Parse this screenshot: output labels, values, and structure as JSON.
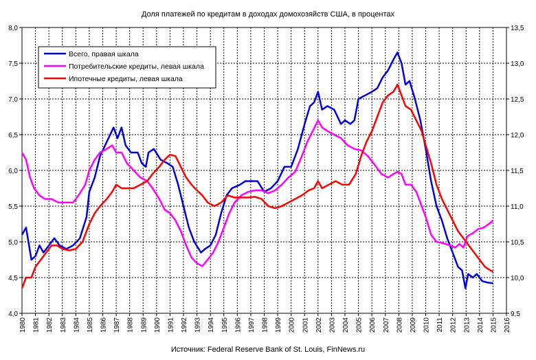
{
  "chart_data": {
    "type": "line",
    "title": "Доля платежей по кредитам в доходах домохозяйств США, в процентах",
    "source": "Источник: Federal Reserve Bank of St. Louis, FinNews.ru",
    "xlabel": "",
    "ylabel_left": "",
    "ylabel_right": "",
    "xlim": [
      1980,
      2016
    ],
    "ylim_left": [
      4.0,
      8.0
    ],
    "ylim_right": [
      9.5,
      13.5
    ],
    "x_ticks": [
      "1980",
      "1981",
      "1982",
      "1983",
      "1984",
      "1985",
      "1986",
      "1987",
      "1988",
      "1989",
      "1990",
      "1991",
      "1992",
      "1993",
      "1994",
      "1995",
      "1996",
      "1997",
      "1998",
      "1999",
      "2000",
      "2001",
      "2002",
      "2003",
      "2004",
      "2005",
      "2006",
      "2007",
      "2008",
      "2009",
      "2010",
      "2011",
      "2012",
      "2013",
      "2014",
      "2015",
      "2016"
    ],
    "y_ticks_left": [
      "4,0",
      "4,5",
      "5,0",
      "5,5",
      "6,0",
      "6,5",
      "7,0",
      "7,5",
      "8,0"
    ],
    "y_ticks_right": [
      "9,5",
      "10,0",
      "10,5",
      "11,0",
      "11,5",
      "12,0",
      "12,5",
      "13,0",
      "13,5"
    ],
    "grid": true,
    "legend_position": "top-left",
    "series": [
      {
        "name": "Всего, правая шкала",
        "axis": "right",
        "color": "#0000dd",
        "points": [
          [
            1980,
            10.6
          ],
          [
            1980.3,
            10.7
          ],
          [
            1980.7,
            10.25
          ],
          [
            1981,
            10.3
          ],
          [
            1981.3,
            10.45
          ],
          [
            1981.6,
            10.35
          ],
          [
            1982,
            10.45
          ],
          [
            1982.4,
            10.55
          ],
          [
            1982.8,
            10.45
          ],
          [
            1983.3,
            10.4
          ],
          [
            1983.8,
            10.45
          ],
          [
            1984.3,
            10.55
          ],
          [
            1984.8,
            10.85
          ],
          [
            1985,
            11.2
          ],
          [
            1985.4,
            11.4
          ],
          [
            1985.8,
            11.7
          ],
          [
            1986.3,
            11.9
          ],
          [
            1986.8,
            12.1
          ],
          [
            1987.1,
            11.95
          ],
          [
            1987.4,
            12.1
          ],
          [
            1987.7,
            11.85
          ],
          [
            1988.1,
            11.75
          ],
          [
            1988.6,
            11.75
          ],
          [
            1988.9,
            11.6
          ],
          [
            1989.2,
            11.55
          ],
          [
            1989.4,
            11.75
          ],
          [
            1989.8,
            11.8
          ],
          [
            1990.3,
            11.65
          ],
          [
            1990.8,
            11.6
          ],
          [
            1991.2,
            11.55
          ],
          [
            1991.6,
            11.3
          ],
          [
            1992,
            11.0
          ],
          [
            1992.4,
            10.7
          ],
          [
            1992.8,
            10.5
          ],
          [
            1993.3,
            10.35
          ],
          [
            1993.6,
            10.4
          ],
          [
            1994,
            10.45
          ],
          [
            1994.4,
            10.6
          ],
          [
            1994.8,
            10.9
          ],
          [
            1995.2,
            11.15
          ],
          [
            1995.6,
            11.25
          ],
          [
            1996.2,
            11.3
          ],
          [
            1996.6,
            11.35
          ],
          [
            1997,
            11.35
          ],
          [
            1997.5,
            11.35
          ],
          [
            1998,
            11.2
          ],
          [
            1998.5,
            11.25
          ],
          [
            1999,
            11.35
          ],
          [
            1999.5,
            11.55
          ],
          [
            2000,
            11.55
          ],
          [
            2000.5,
            11.8
          ],
          [
            2001,
            12.15
          ],
          [
            2001.4,
            12.4
          ],
          [
            2001.7,
            12.45
          ],
          [
            2002,
            12.6
          ],
          [
            2002.3,
            12.35
          ],
          [
            2002.7,
            12.4
          ],
          [
            2003.2,
            12.35
          ],
          [
            2003.7,
            12.15
          ],
          [
            2004,
            12.2
          ],
          [
            2004.4,
            12.15
          ],
          [
            2004.7,
            12.2
          ],
          [
            2005,
            12.5
          ],
          [
            2005.5,
            12.55
          ],
          [
            2006,
            12.6
          ],
          [
            2006.4,
            12.65
          ],
          [
            2006.8,
            12.8
          ],
          [
            2007.2,
            12.9
          ],
          [
            2007.6,
            13.05
          ],
          [
            2007.9,
            13.15
          ],
          [
            2008.2,
            13.0
          ],
          [
            2008.5,
            12.7
          ],
          [
            2008.8,
            12.75
          ],
          [
            2009.2,
            12.5
          ],
          [
            2009.6,
            12.2
          ],
          [
            2010,
            11.8
          ],
          [
            2010.4,
            11.35
          ],
          [
            2010.8,
            11.0
          ],
          [
            2011.2,
            10.8
          ],
          [
            2011.6,
            10.55
          ],
          [
            2012,
            10.35
          ],
          [
            2012.4,
            10.15
          ],
          [
            2012.7,
            10.1
          ],
          [
            2012.95,
            9.85
          ],
          [
            2013.15,
            10.05
          ],
          [
            2013.5,
            10.0
          ],
          [
            2013.8,
            10.05
          ],
          [
            2014.2,
            9.95
          ],
          [
            2014.6,
            9.93
          ],
          [
            2015,
            9.92
          ]
        ]
      },
      {
        "name": "Потребительские кредиты, левая шкала",
        "axis": "left",
        "color": "#ff00ff",
        "points": [
          [
            1980,
            6.25
          ],
          [
            1980.3,
            6.15
          ],
          [
            1980.6,
            5.9
          ],
          [
            1980.9,
            5.75
          ],
          [
            1981.3,
            5.65
          ],
          [
            1981.7,
            5.6
          ],
          [
            1982.2,
            5.6
          ],
          [
            1982.7,
            5.55
          ],
          [
            1983.3,
            5.55
          ],
          [
            1983.8,
            5.55
          ],
          [
            1984.2,
            5.65
          ],
          [
            1984.7,
            5.8
          ],
          [
            1985,
            6.0
          ],
          [
            1985.4,
            6.15
          ],
          [
            1985.8,
            6.25
          ],
          [
            1986.3,
            6.3
          ],
          [
            1986.7,
            6.35
          ],
          [
            1987,
            6.25
          ],
          [
            1987.4,
            6.25
          ],
          [
            1987.8,
            6.1
          ],
          [
            1988.3,
            6.0
          ],
          [
            1988.8,
            5.9
          ],
          [
            1989.3,
            5.85
          ],
          [
            1989.7,
            5.75
          ],
          [
            1990.2,
            5.6
          ],
          [
            1990.6,
            5.45
          ],
          [
            1991,
            5.4
          ],
          [
            1991.4,
            5.3
          ],
          [
            1991.8,
            5.15
          ],
          [
            1992.2,
            4.95
          ],
          [
            1992.6,
            4.78
          ],
          [
            1993,
            4.7
          ],
          [
            1993.4,
            4.66
          ],
          [
            1993.8,
            4.75
          ],
          [
            1994.2,
            4.85
          ],
          [
            1994.6,
            5.0
          ],
          [
            1995,
            5.2
          ],
          [
            1995.4,
            5.4
          ],
          [
            1995.8,
            5.55
          ],
          [
            1996.3,
            5.65
          ],
          [
            1996.8,
            5.7
          ],
          [
            1997.3,
            5.72
          ],
          [
            1997.8,
            5.72
          ],
          [
            1998.3,
            5.68
          ],
          [
            1998.8,
            5.72
          ],
          [
            1999.3,
            5.8
          ],
          [
            1999.8,
            5.9
          ],
          [
            2000.3,
            5.98
          ],
          [
            2000.8,
            6.2
          ],
          [
            2001.2,
            6.4
          ],
          [
            2001.6,
            6.55
          ],
          [
            2002,
            6.7
          ],
          [
            2002.3,
            6.6
          ],
          [
            2002.7,
            6.55
          ],
          [
            2003.2,
            6.5
          ],
          [
            2003.7,
            6.45
          ],
          [
            2004.2,
            6.35
          ],
          [
            2004.7,
            6.3
          ],
          [
            2005.2,
            6.28
          ],
          [
            2005.7,
            6.2
          ],
          [
            2006.2,
            6.08
          ],
          [
            2006.7,
            5.95
          ],
          [
            2007.2,
            5.9
          ],
          [
            2007.6,
            5.95
          ],
          [
            2007.9,
            5.98
          ],
          [
            2008.2,
            5.95
          ],
          [
            2008.5,
            5.8
          ],
          [
            2008.9,
            5.8
          ],
          [
            2009.3,
            5.7
          ],
          [
            2009.7,
            5.5
          ],
          [
            2010,
            5.35
          ],
          [
            2010.4,
            5.1
          ],
          [
            2010.8,
            5.0
          ],
          [
            2011.3,
            4.98
          ],
          [
            2011.8,
            4.95
          ],
          [
            2012.2,
            4.92
          ],
          [
            2012.5,
            4.97
          ],
          [
            2012.8,
            4.92
          ],
          [
            2013.1,
            5.08
          ],
          [
            2013.5,
            5.12
          ],
          [
            2013.9,
            5.18
          ],
          [
            2014.3,
            5.2
          ],
          [
            2014.7,
            5.25
          ],
          [
            2015,
            5.3
          ]
        ]
      },
      {
        "name": "Ипотечные кредиты, левая шкала",
        "axis": "left",
        "color": "#ff0000",
        "points": [
          [
            1980,
            4.35
          ],
          [
            1980.3,
            4.5
          ],
          [
            1980.7,
            4.5
          ],
          [
            1981,
            4.65
          ],
          [
            1981.4,
            4.75
          ],
          [
            1981.8,
            4.85
          ],
          [
            1982.2,
            4.95
          ],
          [
            1982.6,
            4.95
          ],
          [
            1983,
            4.9
          ],
          [
            1983.5,
            4.88
          ],
          [
            1984,
            4.9
          ],
          [
            1984.5,
            5.0
          ],
          [
            1985,
            5.25
          ],
          [
            1985.4,
            5.4
          ],
          [
            1985.8,
            5.5
          ],
          [
            1986.3,
            5.6
          ],
          [
            1986.7,
            5.7
          ],
          [
            1987,
            5.8
          ],
          [
            1987.4,
            5.75
          ],
          [
            1987.8,
            5.75
          ],
          [
            1988.3,
            5.75
          ],
          [
            1988.8,
            5.8
          ],
          [
            1989.3,
            5.85
          ],
          [
            1989.7,
            5.95
          ],
          [
            1990.2,
            6.05
          ],
          [
            1990.6,
            6.15
          ],
          [
            1991,
            6.22
          ],
          [
            1991.4,
            6.2
          ],
          [
            1991.8,
            6.05
          ],
          [
            1992.2,
            5.9
          ],
          [
            1992.6,
            5.8
          ],
          [
            1993,
            5.72
          ],
          [
            1993.4,
            5.65
          ],
          [
            1993.8,
            5.55
          ],
          [
            1994.3,
            5.5
          ],
          [
            1994.8,
            5.55
          ],
          [
            1995.3,
            5.65
          ],
          [
            1995.8,
            5.62
          ],
          [
            1996.3,
            5.62
          ],
          [
            1996.8,
            5.62
          ],
          [
            1997.3,
            5.63
          ],
          [
            1997.8,
            5.6
          ],
          [
            1998.3,
            5.5
          ],
          [
            1998.8,
            5.47
          ],
          [
            1999.3,
            5.5
          ],
          [
            1999.8,
            5.55
          ],
          [
            2000.3,
            5.6
          ],
          [
            2000.8,
            5.65
          ],
          [
            2001.3,
            5.72
          ],
          [
            2001.7,
            5.75
          ],
          [
            2002,
            5.85
          ],
          [
            2002.3,
            5.75
          ],
          [
            2002.8,
            5.8
          ],
          [
            2003.3,
            5.85
          ],
          [
            2003.8,
            5.8
          ],
          [
            2004.3,
            5.8
          ],
          [
            2004.8,
            5.95
          ],
          [
            2005.2,
            6.2
          ],
          [
            2005.6,
            6.4
          ],
          [
            2006,
            6.55
          ],
          [
            2006.4,
            6.75
          ],
          [
            2006.8,
            6.95
          ],
          [
            2007.2,
            7.05
          ],
          [
            2007.6,
            7.1
          ],
          [
            2007.9,
            7.2
          ],
          [
            2008.2,
            7.05
          ],
          [
            2008.5,
            6.9
          ],
          [
            2008.9,
            6.85
          ],
          [
            2009.3,
            6.7
          ],
          [
            2009.7,
            6.55
          ],
          [
            2010,
            6.35
          ],
          [
            2010.4,
            6.1
          ],
          [
            2010.8,
            5.8
          ],
          [
            2011.2,
            5.6
          ],
          [
            2011.6,
            5.45
          ],
          [
            2012,
            5.3
          ],
          [
            2012.4,
            5.15
          ],
          [
            2012.8,
            5.05
          ],
          [
            2013.2,
            4.95
          ],
          [
            2013.6,
            4.85
          ],
          [
            2014,
            4.75
          ],
          [
            2014.4,
            4.65
          ],
          [
            2014.8,
            4.6
          ],
          [
            2015,
            4.58
          ]
        ]
      }
    ]
  }
}
